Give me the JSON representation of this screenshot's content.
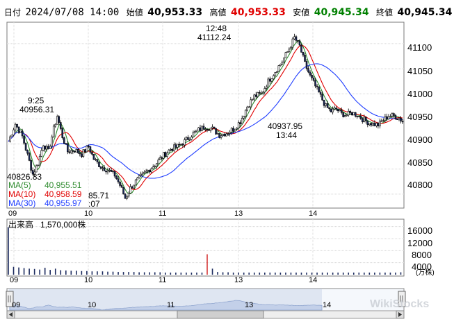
{
  "header": {
    "period": "日付",
    "datetime": "2024/07/08 14:00",
    "open_label": "始値",
    "open": "40,953.33",
    "high_label": "高値",
    "high": "40,953.33",
    "low_label": "安値",
    "low": "40,945.34",
    "close_label": "終値",
    "close": "40,945.34",
    "colors": {
      "high": "#e00000",
      "low": "#008000"
    }
  },
  "annotations": {
    "peak_time": "12:48",
    "peak_value": "41112.24",
    "left_time": "9:25",
    "left_value": "40956.31",
    "last_low_value": "40937.95",
    "last_low_time": "13:44",
    "low_value": "40826.83",
    "low2_value": "85.71",
    "low2_time": ":07"
  },
  "legend": {
    "ma5_label": "MA(5)",
    "ma5_value": "40,955.51",
    "ma10_label": "MA(10)",
    "ma10_value": "40,958.59",
    "ma30_label": "MA(30)",
    "ma30_value": "40,955.97",
    "colors": {
      "ma5": "#2e8b2e",
      "ma10": "#e00000",
      "ma30": "#1e3cff"
    }
  },
  "volume": {
    "label": "出来高",
    "value": "1,570,000株",
    "y_ticks": [
      "16000",
      "12000",
      "8000",
      "4000"
    ],
    "unit": "(万株)"
  },
  "price_axis": {
    "ticks": [
      "41100",
      "41050",
      "41000",
      "40950",
      "40900",
      "40850",
      "40800"
    ]
  },
  "time_axis": {
    "ticks": [
      "09",
      "10",
      "11",
      "13",
      "14"
    ]
  },
  "navigator": {
    "ticks": [
      "09",
      "10",
      "11",
      "13",
      "14"
    ]
  },
  "watermark": "WikiStocks",
  "chart_data": {
    "type": "candlestick",
    "x_ticks": [
      "09",
      "10",
      "11",
      "13",
      "14"
    ],
    "y_ticks": [
      41100,
      41050,
      41000,
      40950,
      40900,
      40850,
      40800
    ],
    "path_points": [
      [
        0,
        40905
      ],
      [
        4,
        40940
      ],
      [
        8,
        40915
      ],
      [
        11,
        40878
      ],
      [
        14,
        40840
      ],
      [
        17,
        40862
      ],
      [
        20,
        40900
      ],
      [
        23,
        40885
      ],
      [
        26,
        40930
      ],
      [
        28,
        40956
      ],
      [
        31,
        40915
      ],
      [
        34,
        40885
      ],
      [
        38,
        40888
      ],
      [
        42,
        40880
      ],
      [
        46,
        40895
      ],
      [
        49,
        40870
      ],
      [
        53,
        40855
      ],
      [
        57,
        40848
      ],
      [
        61,
        40838
      ],
      [
        64,
        40818
      ],
      [
        67,
        40792
      ],
      [
        70,
        40812
      ],
      [
        73,
        40825
      ],
      [
        77,
        40838
      ],
      [
        81,
        40850
      ],
      [
        85,
        40862
      ],
      [
        89,
        40878
      ],
      [
        93,
        40890
      ],
      [
        97,
        40895
      ],
      [
        101,
        40905
      ],
      [
        105,
        40918
      ],
      [
        109,
        40928
      ],
      [
        113,
        40935
      ],
      [
        117,
        40930
      ],
      [
        121,
        40918
      ],
      [
        125,
        40922
      ],
      [
        129,
        40930
      ],
      [
        133,
        40945
      ],
      [
        137,
        40975
      ],
      [
        141,
        40995
      ],
      [
        145,
        41000
      ],
      [
        149,
        41025
      ],
      [
        153,
        41045
      ],
      [
        157,
        41065
      ],
      [
        161,
        41090
      ],
      [
        164,
        41112
      ],
      [
        167,
        41095
      ],
      [
        170,
        41060
      ],
      [
        173,
        41035
      ],
      [
        176,
        41015
      ],
      [
        179,
        40995
      ],
      [
        182,
        40975
      ],
      [
        185,
        40965
      ],
      [
        188,
        40970
      ],
      [
        191,
        40960
      ],
      [
        194,
        40958
      ],
      [
        197,
        40962
      ],
      [
        200,
        40958
      ],
      [
        203,
        40950
      ],
      [
        206,
        40944
      ],
      [
        209,
        40940
      ],
      [
        212,
        40938
      ],
      [
        215,
        40948
      ],
      [
        218,
        40956
      ],
      [
        221,
        40956
      ],
      [
        224,
        40952
      ],
      [
        226,
        40945
      ]
    ],
    "volume": [
      [
        0,
        15800
      ],
      [
        3,
        2600
      ],
      [
        6,
        2400
      ],
      [
        9,
        2200
      ],
      [
        12,
        2000
      ],
      [
        15,
        1900
      ],
      [
        18,
        1700
      ],
      [
        21,
        2300
      ],
      [
        24,
        1600
      ],
      [
        27,
        2000
      ],
      [
        30,
        1500
      ],
      [
        33,
        1400
      ],
      [
        36,
        1300
      ],
      [
        39,
        1300
      ],
      [
        42,
        1200
      ],
      [
        45,
        1200
      ],
      [
        48,
        1100
      ],
      [
        51,
        1100
      ],
      [
        54,
        1100
      ],
      [
        57,
        1000
      ],
      [
        60,
        1000
      ],
      [
        63,
        900
      ],
      [
        66,
        900
      ],
      [
        69,
        900
      ],
      [
        72,
        900
      ],
      [
        75,
        800
      ],
      [
        78,
        800
      ],
      [
        81,
        800
      ],
      [
        84,
        800
      ],
      [
        87,
        800
      ],
      [
        90,
        700
      ],
      [
        93,
        700
      ],
      [
        96,
        700
      ],
      [
        99,
        700
      ],
      [
        102,
        700
      ],
      [
        105,
        700
      ],
      [
        108,
        700
      ],
      [
        111,
        700
      ],
      [
        114,
        6800
      ],
      [
        117,
        2000
      ],
      [
        120,
        900
      ],
      [
        123,
        800
      ],
      [
        126,
        800
      ],
      [
        129,
        700
      ],
      [
        132,
        700
      ],
      [
        135,
        700
      ],
      [
        138,
        700
      ],
      [
        141,
        700
      ],
      [
        144,
        700
      ],
      [
        147,
        700
      ],
      [
        150,
        700
      ],
      [
        153,
        700
      ],
      [
        156,
        700
      ],
      [
        159,
        700
      ],
      [
        162,
        700
      ],
      [
        165,
        700
      ],
      [
        168,
        700
      ],
      [
        171,
        700
      ],
      [
        174,
        700
      ],
      [
        177,
        700
      ],
      [
        180,
        700
      ],
      [
        183,
        700
      ],
      [
        186,
        700
      ],
      [
        189,
        700
      ],
      [
        192,
        700
      ],
      [
        195,
        700
      ],
      [
        198,
        700
      ],
      [
        201,
        700
      ],
      [
        204,
        700
      ],
      [
        207,
        700
      ],
      [
        210,
        700
      ],
      [
        213,
        700
      ],
      [
        216,
        700
      ],
      [
        219,
        700
      ],
      [
        222,
        700
      ],
      [
        225,
        800
      ]
    ]
  }
}
